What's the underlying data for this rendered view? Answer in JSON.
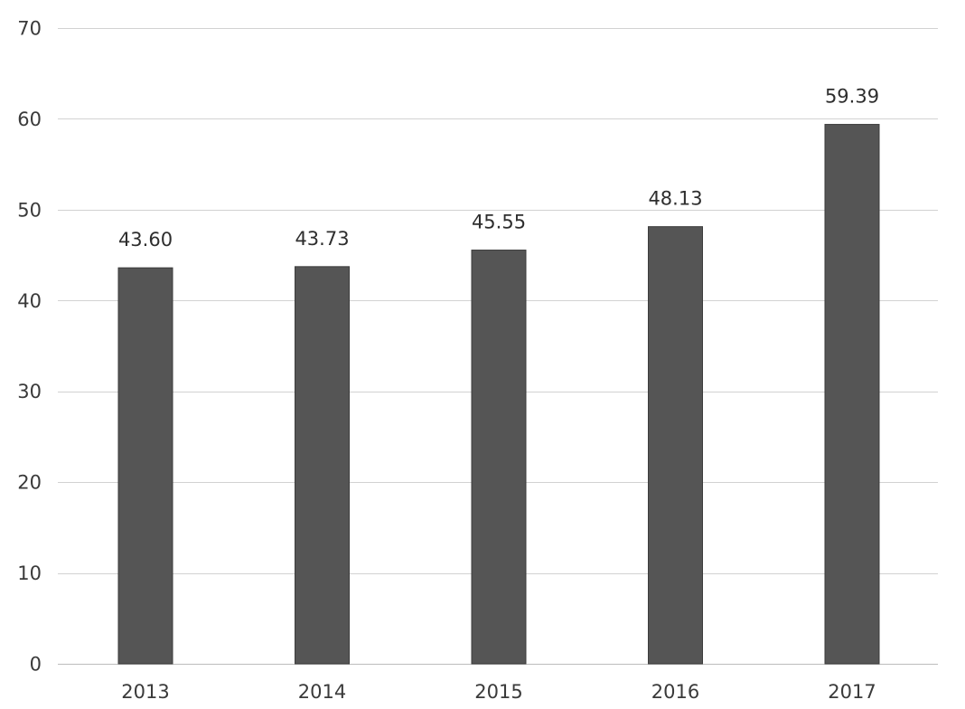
{
  "chart_data": {
    "type": "bar",
    "categories": [
      "2013",
      "2014",
      "2015",
      "2016",
      "2017"
    ],
    "values": [
      43.6,
      43.73,
      45.55,
      48.13,
      59.39
    ],
    "data_labels": [
      "43.60",
      "43.73",
      "45.55",
      "48.13",
      "59.39"
    ],
    "y_ticks": [
      "0",
      "10",
      "20",
      "30",
      "40",
      "50",
      "60",
      "70"
    ],
    "ylim": [
      0,
      70
    ],
    "grid": true,
    "legend": "none",
    "title": "",
    "xlabel": "",
    "ylabel": "",
    "colors": {
      "bar": "#555555",
      "grid": "#d2d2d2",
      "text": "#3a3a3a"
    }
  }
}
